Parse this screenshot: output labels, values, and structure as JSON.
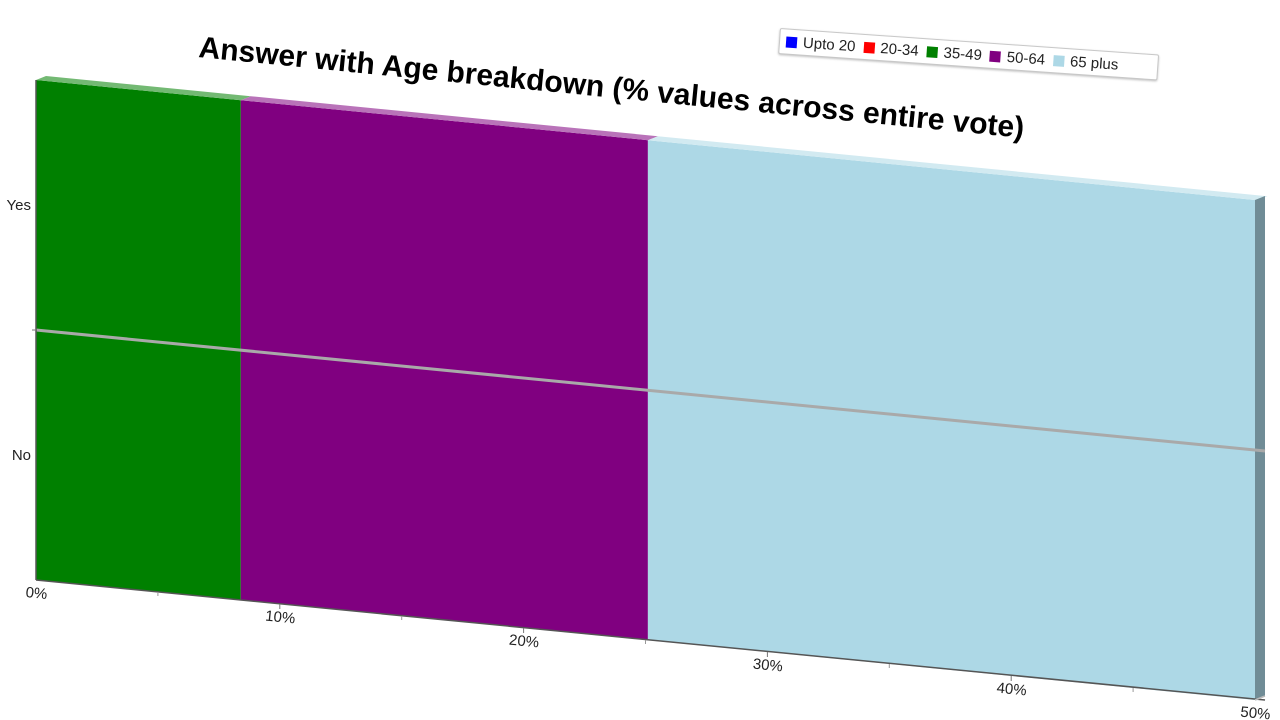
{
  "chart_data": {
    "type": "bar",
    "orientation": "horizontal",
    "stacked": true,
    "style": "3d",
    "title": "Answer with Age breakdown (% values across entire vote)",
    "categories": [
      "Yes",
      "No"
    ],
    "x_ticks": [
      "0%",
      "10%",
      "20%",
      "30%",
      "40%",
      "50%"
    ],
    "xlim": [
      0,
      50
    ],
    "legend_position": "top-right",
    "series": [
      {
        "name": "Upto 20",
        "color": "#0000ff",
        "values": [
          0,
          0
        ]
      },
      {
        "name": "20-34",
        "color": "#ff0000",
        "values": [
          0,
          0
        ]
      },
      {
        "name": "35-49",
        "color": "#008000",
        "values": [
          8.4,
          8.4
        ]
      },
      {
        "name": "50-64",
        "color": "#800080",
        "values": [
          16.7,
          16.7
        ]
      },
      {
        "name": "65 plus",
        "color": "#add8e6",
        "values": [
          25,
          25
        ]
      }
    ]
  }
}
